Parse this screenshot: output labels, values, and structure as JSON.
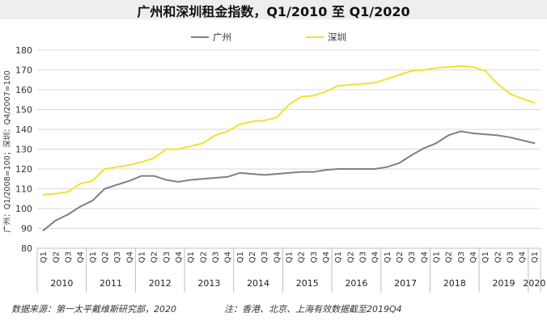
{
  "chart_data": {
    "type": "line",
    "title": "广州和深圳租金指数，Q1/2010 至 Q1/2020",
    "ylabel": "广州：Q1/2008=100；深圳：Q4/2007=100",
    "ylim": [
      80,
      180
    ],
    "yticks": [
      80,
      90,
      100,
      110,
      120,
      130,
      140,
      150,
      160,
      170,
      180
    ],
    "grid": true,
    "legend_position": "top-center",
    "x_quarter_labels": [
      "Q1",
      "Q2",
      "Q3",
      "Q4",
      "Q1",
      "Q2",
      "Q3",
      "Q4",
      "Q1",
      "Q2",
      "Q3",
      "Q4",
      "Q1",
      "Q2",
      "Q3",
      "Q4",
      "Q1",
      "Q2",
      "Q3",
      "Q4",
      "Q1",
      "Q2",
      "Q3",
      "Q4",
      "Q1",
      "Q2",
      "Q3",
      "Q4",
      "Q1",
      "Q2",
      "Q3",
      "Q4",
      "Q1",
      "Q2",
      "Q3",
      "Q4",
      "Q1",
      "Q2",
      "Q3",
      "Q4",
      "Q1"
    ],
    "years": [
      "2010",
      "2011",
      "2012",
      "2013",
      "2014",
      "2015",
      "2016",
      "2017",
      "2018",
      "2019",
      "2020"
    ],
    "series": [
      {
        "name": "广州",
        "color": "#808080",
        "values": [
          89,
          94,
          97,
          101,
          104,
          110,
          112,
          114,
          116.5,
          116.5,
          114.5,
          113.5,
          114.5,
          115,
          115.5,
          116,
          118,
          117.5,
          117,
          117.5,
          118,
          118.5,
          118.5,
          119.5,
          120,
          120,
          120,
          120,
          121,
          123,
          127,
          130.5,
          133,
          137,
          139,
          138,
          137.5,
          137,
          136,
          134.5,
          133
        ]
      },
      {
        "name": "深圳",
        "color": "#f2e12e",
        "values": [
          107,
          107.5,
          108.5,
          112.5,
          114,
          120,
          121,
          122,
          123.5,
          125.5,
          130,
          130,
          131.5,
          133,
          137,
          139,
          142.5,
          144,
          144.5,
          146,
          152.5,
          156.5,
          157,
          159,
          162,
          162.5,
          163,
          163.5,
          165.5,
          167.5,
          169.5,
          170,
          171,
          171.5,
          172,
          171.5,
          169.5,
          163,
          158,
          155.5,
          153.5
        ]
      }
    ]
  },
  "footer": {
    "source": "数据来源：第一太平戴维斯研究部，2020",
    "note": "注：香港、北京、上海有效数据截至2019Q4"
  }
}
